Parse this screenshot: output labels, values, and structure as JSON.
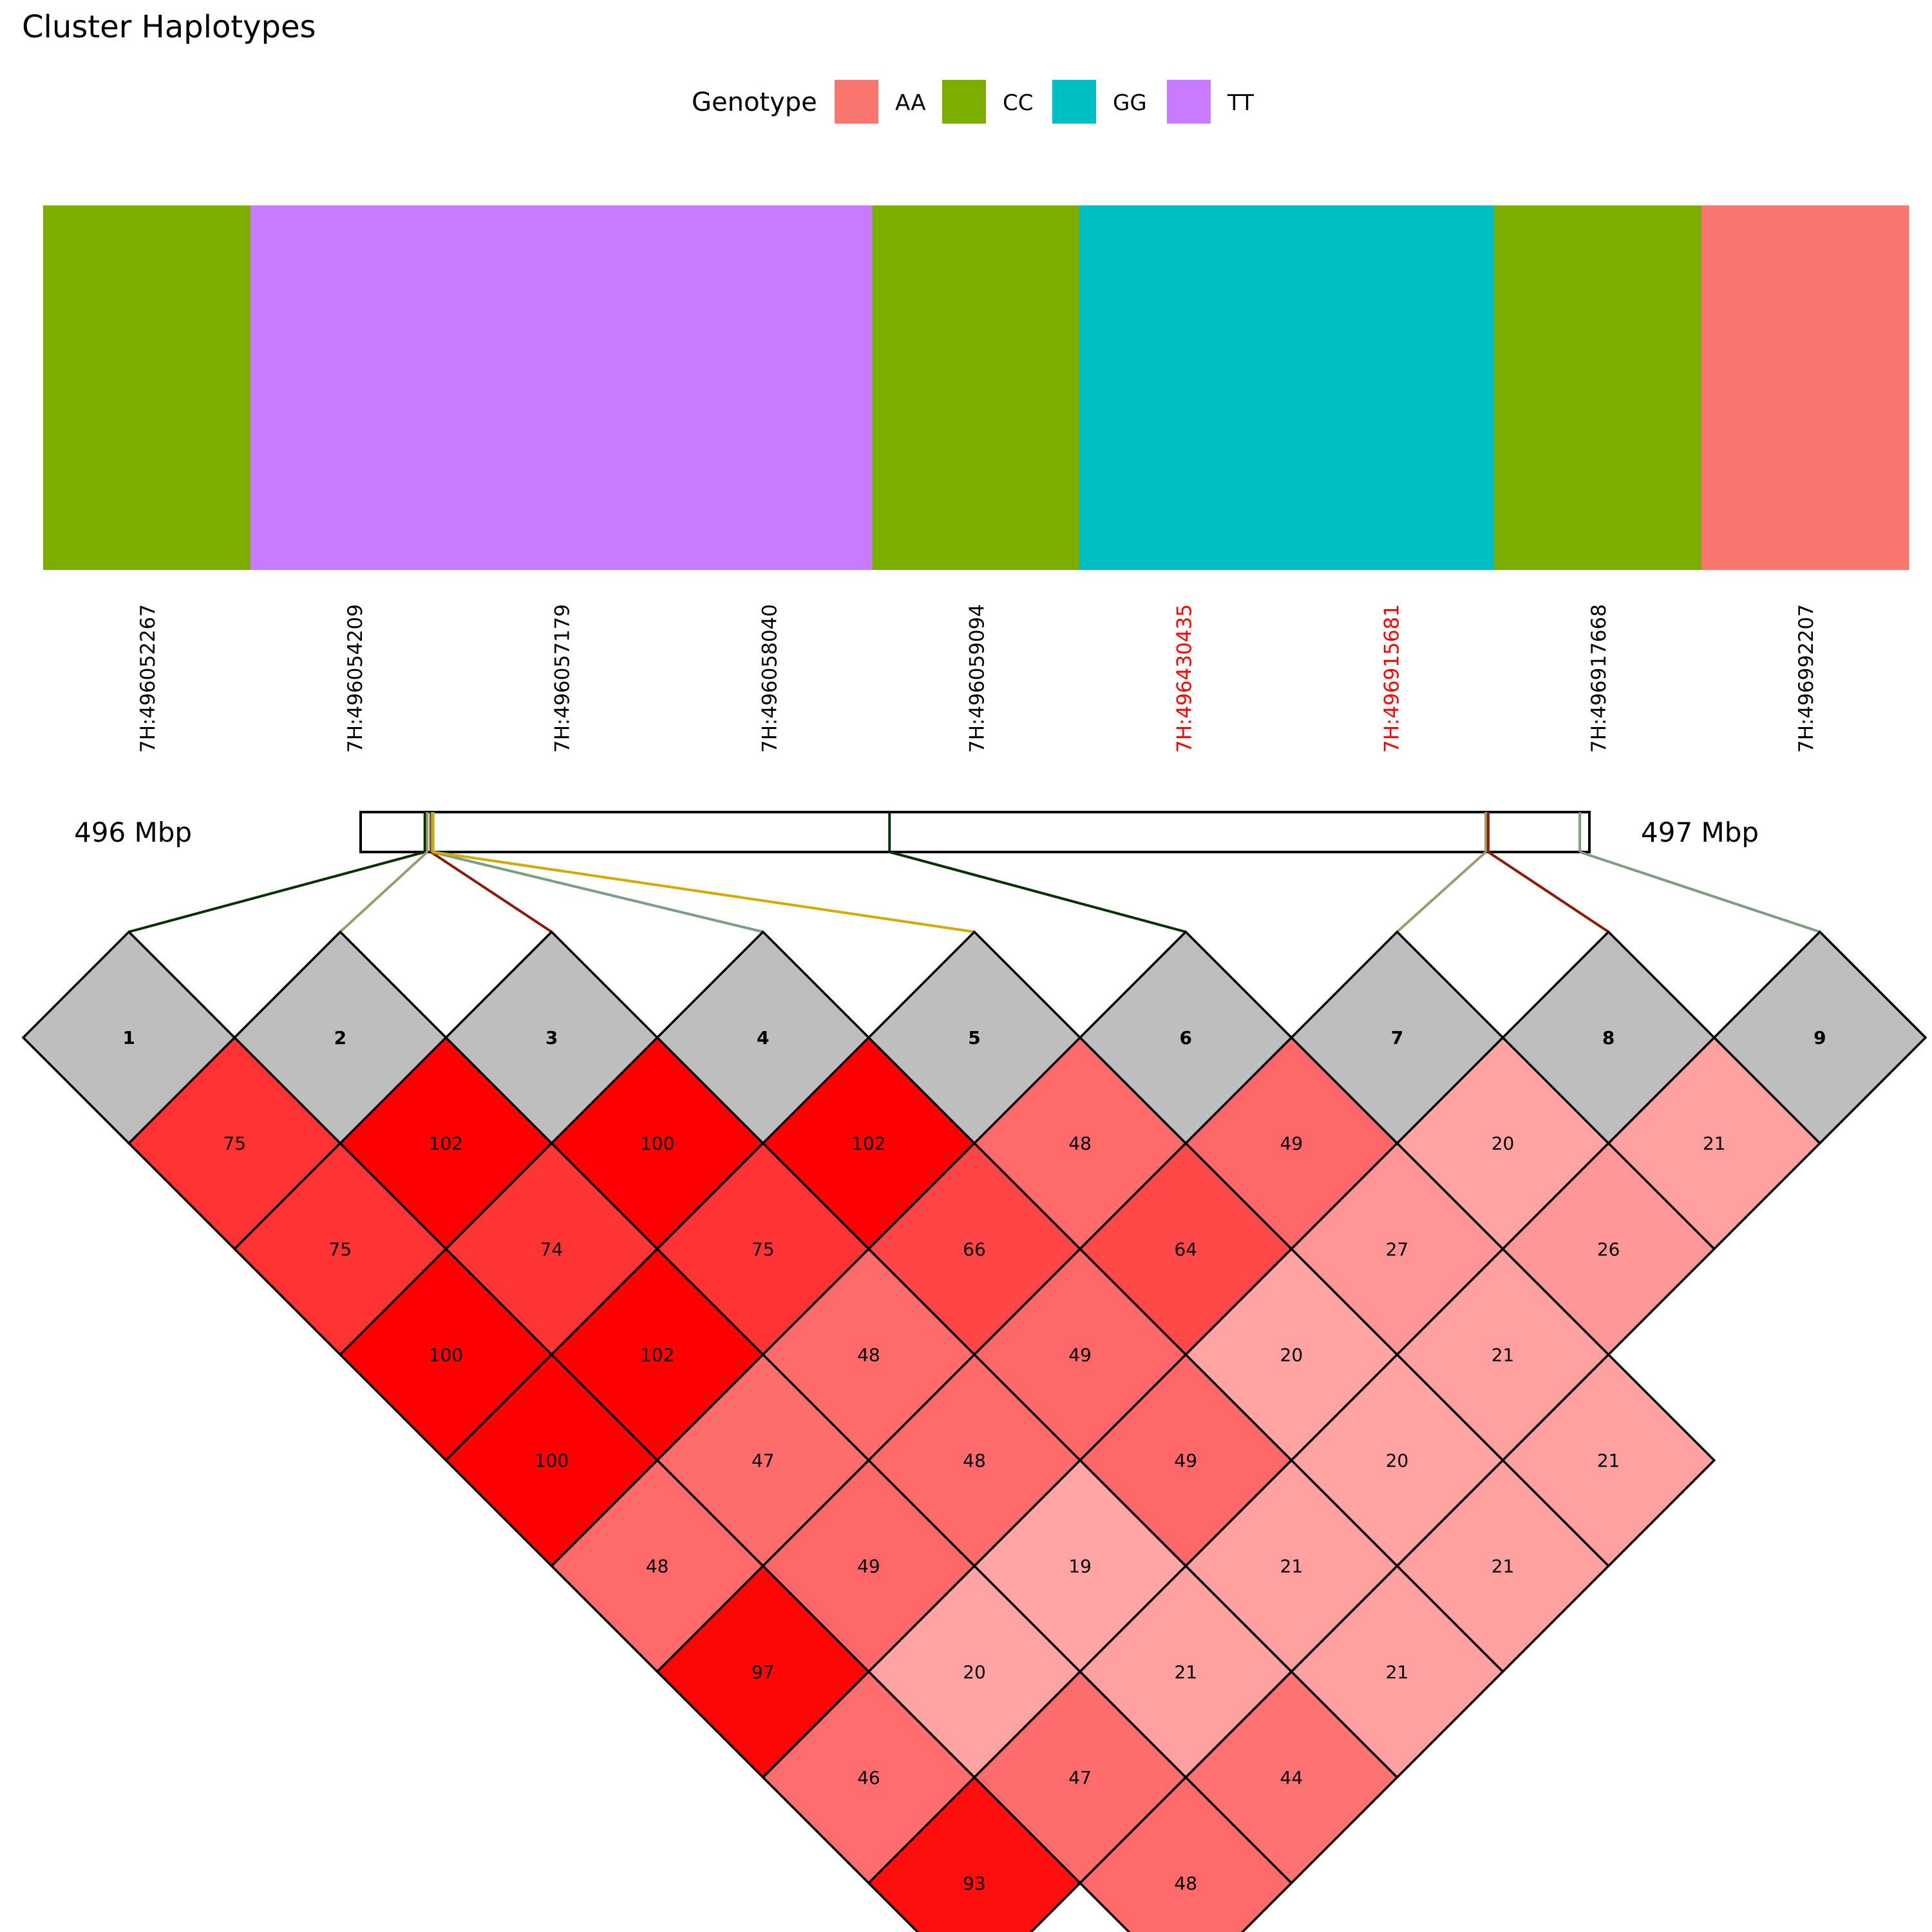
{
  "chart_data": {
    "type": "heatmap",
    "title": "Cluster Haplotypes",
    "legend": {
      "title": "Genotype",
      "placement": "top-center",
      "entries": [
        {
          "label": "AA",
          "color": "#F8766D"
        },
        {
          "label": "CC",
          "color": "#7CAE00"
        },
        {
          "label": "GG",
          "color": "#00BFC4"
        },
        {
          "label": "TT",
          "color": "#C77CFF"
        }
      ]
    },
    "markers": [
      {
        "id": "7H:496052267",
        "genotype": "CC",
        "highlighted": false,
        "position_bp": 496052267
      },
      {
        "id": "7H:496054209",
        "genotype": "TT",
        "highlighted": false,
        "position_bp": 496054209
      },
      {
        "id": "7H:496057179",
        "genotype": "TT",
        "highlighted": false,
        "position_bp": 496057179
      },
      {
        "id": "7H:496058040",
        "genotype": "TT",
        "highlighted": false,
        "position_bp": 496058040
      },
      {
        "id": "7H:496059094",
        "genotype": "CC",
        "highlighted": false,
        "position_bp": 496059094
      },
      {
        "id": "7H:496430435",
        "genotype": "GG",
        "highlighted": true,
        "position_bp": 496430435
      },
      {
        "id": "7H:496915681",
        "genotype": "GG",
        "highlighted": true,
        "position_bp": 496915681
      },
      {
        "id": "7H:496917668",
        "genotype": "CC",
        "highlighted": false,
        "position_bp": 496917668
      },
      {
        "id": "7H:496992207",
        "genotype": "AA",
        "highlighted": false,
        "position_bp": 496992207
      }
    ],
    "highlight_color": "#FF0000",
    "genome_axis": {
      "left_label": "496 Mbp",
      "right_label": "497 Mbp"
    },
    "connector_colors": [
      "#003300",
      "#9C9C6E",
      "#8B1A00",
      "#7A9E82",
      "#D4AA00",
      "#003300",
      "#9C9C6E",
      "#8B1A00",
      "#7A9E82"
    ],
    "diagonal_labels": [
      "1",
      "2",
      "3",
      "4",
      "5",
      "6",
      "7",
      "8",
      "9"
    ],
    "diagonal_color": "#BEBEBE",
    "ld_color_low": "#FFFFFF",
    "ld_color_high": "#FF0000",
    "ld_matrix": [
      [
        75,
        102,
        100,
        102,
        48,
        49,
        20,
        21
      ],
      [
        75,
        74,
        75,
        66,
        64,
        27,
        26
      ],
      [
        100,
        102,
        48,
        49,
        20,
        21
      ],
      [
        100,
        47,
        48,
        49,
        20,
        21
      ],
      [
        48,
        49,
        19,
        21,
        21
      ],
      [
        97,
        20,
        21,
        21
      ],
      [
        46,
        47,
        44
      ],
      [
        93,
        48
      ]
    ]
  }
}
